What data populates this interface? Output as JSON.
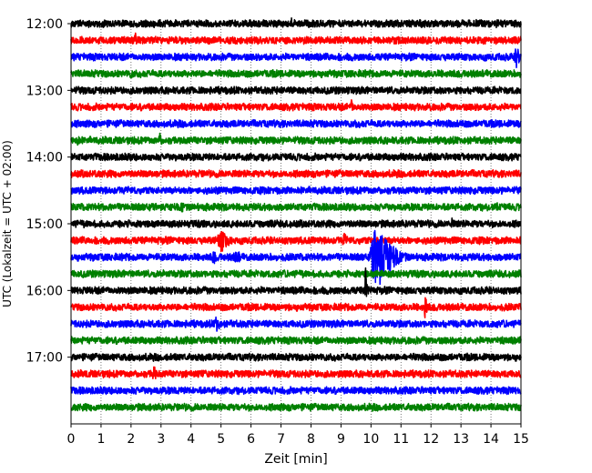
{
  "chart_data": {
    "type": "line",
    "title": "",
    "xlabel": "Zeit  [min]",
    "ylabel": "UTC (Lokalzeit = UTC + 02:00)",
    "xlim": [
      0,
      15
    ],
    "ylim_minutes_utc": [
      720,
      1080
    ],
    "x_ticks": [
      0,
      1,
      2,
      3,
      4,
      5,
      6,
      7,
      8,
      9,
      10,
      11,
      12,
      13,
      14,
      15
    ],
    "y_tick_labels": [
      "12:00",
      "13:00",
      "14:00",
      "15:00",
      "16:00",
      "17:00"
    ],
    "vertical_grid": "dotted at each minute",
    "legend": "none",
    "trace_interval_minutes": 15,
    "color_cycle": [
      "#000000",
      "#ff0000",
      "#0000ff",
      "#008000"
    ],
    "series": [
      {
        "start": "12:00",
        "color": "#000000",
        "events": [
          {
            "t": 7.35,
            "amp": 0.35,
            "dur": 0.15
          },
          {
            "t": 11.8,
            "amp": 0.25,
            "dur": 0.3
          }
        ]
      },
      {
        "start": "12:15",
        "color": "#ff0000",
        "events": [
          {
            "t": 2.15,
            "amp": 0.55,
            "dur": 0.2
          }
        ]
      },
      {
        "start": "12:30",
        "color": "#0000ff",
        "events": [
          {
            "t": 14.85,
            "amp": 0.8,
            "dur": 0.3
          }
        ]
      },
      {
        "start": "12:45",
        "color": "#008000",
        "events": [
          {
            "t": 2.0,
            "amp": 0.3,
            "dur": 0.6
          }
        ]
      },
      {
        "start": "13:00",
        "color": "#000000",
        "events": []
      },
      {
        "start": "13:15",
        "color": "#ff0000",
        "events": [
          {
            "t": 9.35,
            "amp": 0.5,
            "dur": 0.2
          }
        ]
      },
      {
        "start": "13:30",
        "color": "#0000ff",
        "events": [
          {
            "t": 9.5,
            "amp": 0.3,
            "dur": 0.3
          },
          {
            "t": 13.0,
            "amp": 0.3,
            "dur": 0.3
          }
        ]
      },
      {
        "start": "13:45",
        "color": "#008000",
        "events": [
          {
            "t": 0.2,
            "amp": 0.4,
            "dur": 0.3
          },
          {
            "t": 2.95,
            "amp": 0.55,
            "dur": 0.2
          }
        ]
      },
      {
        "start": "14:00",
        "color": "#000000",
        "events": []
      },
      {
        "start": "14:15",
        "color": "#ff0000",
        "events": []
      },
      {
        "start": "14:30",
        "color": "#0000ff",
        "events": []
      },
      {
        "start": "14:45",
        "color": "#008000",
        "events": [
          {
            "t": 3.7,
            "amp": 0.45,
            "dur": 0.25
          },
          {
            "t": 14.2,
            "amp": 0.4,
            "dur": 0.2
          }
        ]
      },
      {
        "start": "15:00",
        "color": "#000000",
        "events": [
          {
            "t": 12.7,
            "amp": 0.35,
            "dur": 0.2
          }
        ]
      },
      {
        "start": "15:15",
        "color": "#ff0000",
        "events": [
          {
            "t": 5.0,
            "amp": 0.8,
            "dur": 0.6
          },
          {
            "t": 9.1,
            "amp": 0.55,
            "dur": 0.25
          }
        ]
      },
      {
        "start": "15:30",
        "color": "#0000ff",
        "events": [
          {
            "t": 3.1,
            "amp": 0.3,
            "dur": 0.4
          },
          {
            "t": 4.75,
            "amp": 0.6,
            "dur": 0.2
          },
          {
            "t": 5.5,
            "amp": 0.45,
            "dur": 0.6
          },
          {
            "t": 10.2,
            "amp": 2.2,
            "dur": 1.0
          }
        ]
      },
      {
        "start": "15:45",
        "color": "#008000",
        "events": []
      },
      {
        "start": "16:00",
        "color": "#000000",
        "events": [
          {
            "t": 9.82,
            "amp": 1.4,
            "dur": 0.15
          }
        ]
      },
      {
        "start": "16:15",
        "color": "#ff0000",
        "events": [
          {
            "t": 11.8,
            "amp": 0.9,
            "dur": 0.15
          }
        ]
      },
      {
        "start": "16:30",
        "color": "#0000ff",
        "events": [
          {
            "t": 4.85,
            "amp": 0.6,
            "dur": 0.3
          }
        ]
      },
      {
        "start": "16:45",
        "color": "#008000",
        "events": []
      },
      {
        "start": "17:00",
        "color": "#000000",
        "events": [
          {
            "t": 11.5,
            "amp": 0.3,
            "dur": 0.2
          }
        ]
      },
      {
        "start": "17:15",
        "color": "#ff0000",
        "events": [
          {
            "t": 2.75,
            "amp": 0.65,
            "dur": 0.2
          }
        ]
      },
      {
        "start": "17:30",
        "color": "#0000ff",
        "events": [
          {
            "t": 1.5,
            "amp": 0.3,
            "dur": 0.1
          }
        ]
      },
      {
        "start": "17:45",
        "color": "#008000",
        "events": []
      }
    ]
  }
}
